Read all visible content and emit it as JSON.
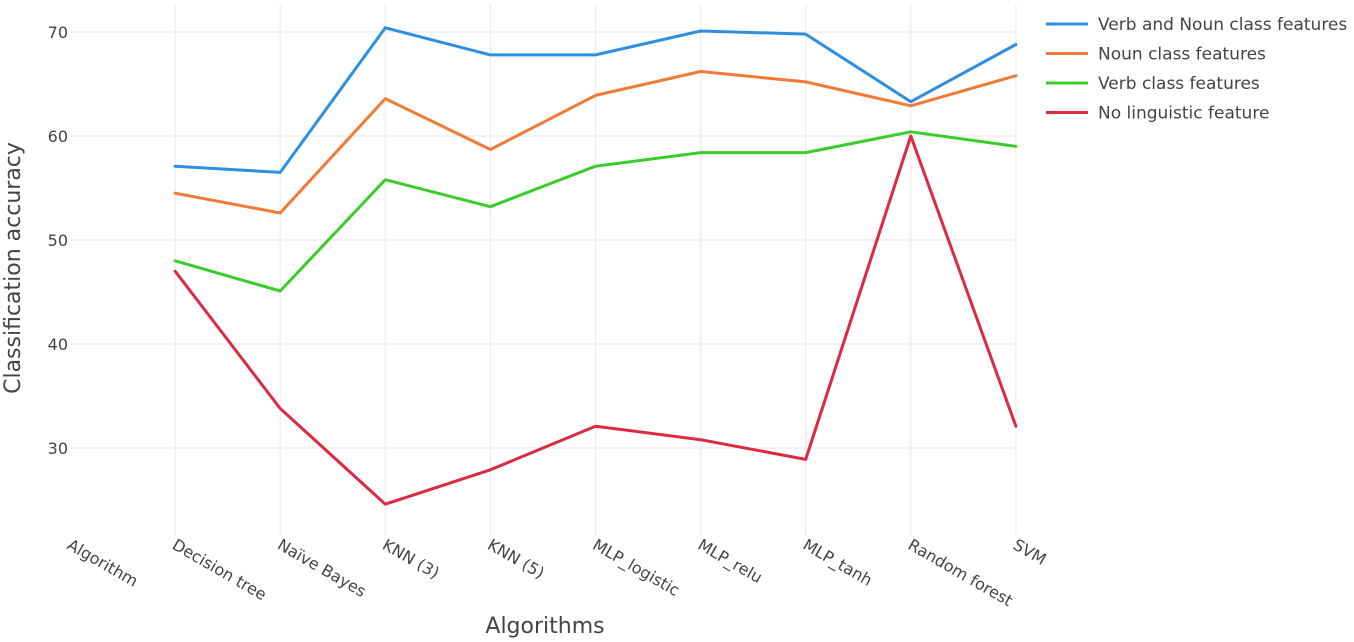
{
  "chart_data": {
    "type": "line",
    "xlabel": "Algorithms",
    "ylabel": "Classification accuracy",
    "categories": [
      "Algorithm",
      "Decision tree",
      "Naïve Bayes",
      "KNN (3)",
      "KNN (5)",
      "MLP_logistic",
      "MLP_relu",
      "MLP_tanh",
      "Random forest",
      "SVM"
    ],
    "yticks": [
      30,
      40,
      50,
      60,
      70
    ],
    "ylim": [
      21.5,
      73
    ],
    "grid": true,
    "legend_position": "top-right",
    "series": [
      {
        "name": "Verb and Noun class features",
        "color": "#2e8fdf",
        "values": [
          null,
          57.1,
          56.5,
          70.4,
          67.8,
          67.8,
          70.1,
          69.8,
          63.3,
          68.8
        ]
      },
      {
        "name": "Noun class features",
        "color": "#f07a36",
        "values": [
          null,
          54.5,
          52.6,
          63.6,
          58.7,
          63.9,
          66.2,
          65.2,
          62.9,
          65.8
        ]
      },
      {
        "name": "Verb class features",
        "color": "#3acd2a",
        "values": [
          null,
          48.0,
          45.1,
          55.8,
          53.2,
          57.1,
          58.4,
          58.4,
          60.4,
          59.0
        ]
      },
      {
        "name": "No linguistic feature",
        "color": "#dc2a43",
        "values": [
          null,
          47.0,
          33.8,
          24.6,
          27.9,
          32.1,
          30.8,
          28.9,
          60.0,
          32.1
        ]
      }
    ]
  }
}
